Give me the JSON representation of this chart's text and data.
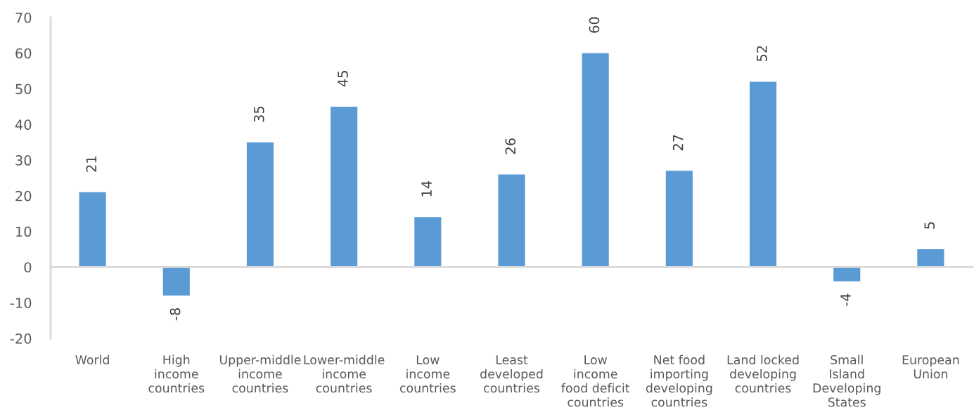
{
  "chart_data": {
    "type": "bar",
    "categories": [
      "World",
      "High\nincome\ncountries",
      "Upper-middle\nincome\ncountries",
      "Lower-middle\nincome\ncountries",
      "Low\nincome\ncountries",
      "Least\ndeveloped\ncountries",
      "Low\nincome\nfood deficit\ncountries",
      "Net food\nimporting\ndeveloping\ncountries",
      "Land locked\ndeveloping\ncountries",
      "Small\nIsland\nDeveloping\nStates",
      "European\nUnion"
    ],
    "values": [
      21,
      -8,
      35,
      45,
      14,
      26,
      60,
      27,
      52,
      -4,
      5
    ],
    "color": "#5b9bd5",
    "ylim": [
      -20,
      70
    ],
    "yticks": [
      -20,
      -10,
      0,
      10,
      20,
      30,
      40,
      50,
      60,
      70
    ],
    "data_labels": true
  }
}
